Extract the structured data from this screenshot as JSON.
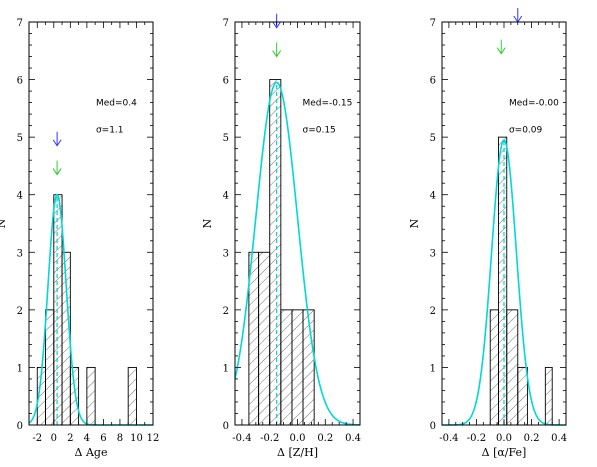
{
  "chart_data": [
    {
      "type": "bar",
      "xlabel": "Δ Age",
      "ylabel": "N",
      "xlim": [
        -3,
        12
      ],
      "ylim": [
        0,
        7
      ],
      "xticks": [
        -2,
        0,
        2,
        4,
        6,
        8,
        10,
        12
      ],
      "yticks": [
        0,
        1,
        2,
        3,
        4,
        5,
        6,
        7
      ],
      "bin_edges": [
        -2,
        -1,
        0,
        1,
        2,
        3,
        4,
        5,
        6,
        7,
        8,
        9,
        10
      ],
      "counts": [
        1,
        2,
        4,
        3,
        1,
        0,
        1,
        0,
        0,
        0,
        0,
        1
      ],
      "gaussian": {
        "mean": 0.4,
        "sigma": 1.1,
        "amplitude": 4.0
      },
      "median_line_x": 0.4,
      "arrows": [
        {
          "color": "#3333ff",
          "x": 0.4,
          "y": 4.85
        },
        {
          "color": "#33cc33",
          "x": 0.4,
          "y": 4.35
        }
      ],
      "annotation": {
        "med": "Med=0.4",
        "sigma": "σ=1.1"
      }
    },
    {
      "type": "bar",
      "xlabel": "Δ [Z/H]",
      "ylabel": "N",
      "xlim": [
        -0.45,
        0.45
      ],
      "ylim": [
        0,
        7
      ],
      "xticks": [
        -0.4,
        -0.2,
        0.0,
        0.2,
        0.4
      ],
      "yticks": [
        0,
        1,
        2,
        3,
        4,
        5,
        6,
        7
      ],
      "bin_edges": [
        -0.35,
        -0.28,
        -0.2,
        -0.12,
        -0.04,
        0.04,
        0.12
      ],
      "counts": [
        3,
        3,
        6,
        2,
        2,
        2
      ],
      "gaussian": {
        "mean": -0.15,
        "sigma": 0.15,
        "amplitude": 5.95
      },
      "median_line_x": -0.15,
      "arrows": [
        {
          "color": "#3333ff",
          "x": -0.15,
          "y": 6.9
        },
        {
          "color": "#33cc33",
          "x": -0.15,
          "y": 6.4
        }
      ],
      "annotation": {
        "med": "Med=-0.15",
        "sigma": "σ=0.15"
      }
    },
    {
      "type": "bar",
      "xlabel": "Δ [α/Fe]",
      "ylabel": "N",
      "xlim": [
        -0.45,
        0.45
      ],
      "ylim": [
        0,
        7
      ],
      "xticks": [
        -0.4,
        -0.2,
        0.0,
        0.2,
        0.4
      ],
      "yticks": [
        0,
        1,
        2,
        3,
        4,
        5,
        6,
        7
      ],
      "bin_edges": [
        -0.1,
        -0.04,
        0.02,
        0.1,
        0.17,
        0.25,
        0.3,
        0.35
      ],
      "counts": [
        2,
        5,
        2,
        1,
        0,
        0,
        1
      ],
      "gaussian": {
        "mean": -0.0,
        "sigma": 0.09,
        "amplitude": 4.95
      },
      "median_line_x": 0.0,
      "arrows": [
        {
          "color": "#3333ff",
          "x": 0.1,
          "y": 7.0
        },
        {
          "color": "#33cc33",
          "x": -0.02,
          "y": 6.45
        }
      ],
      "annotation": {
        "med": "Med=-0.00",
        "sigma": "σ=0.09"
      }
    }
  ]
}
